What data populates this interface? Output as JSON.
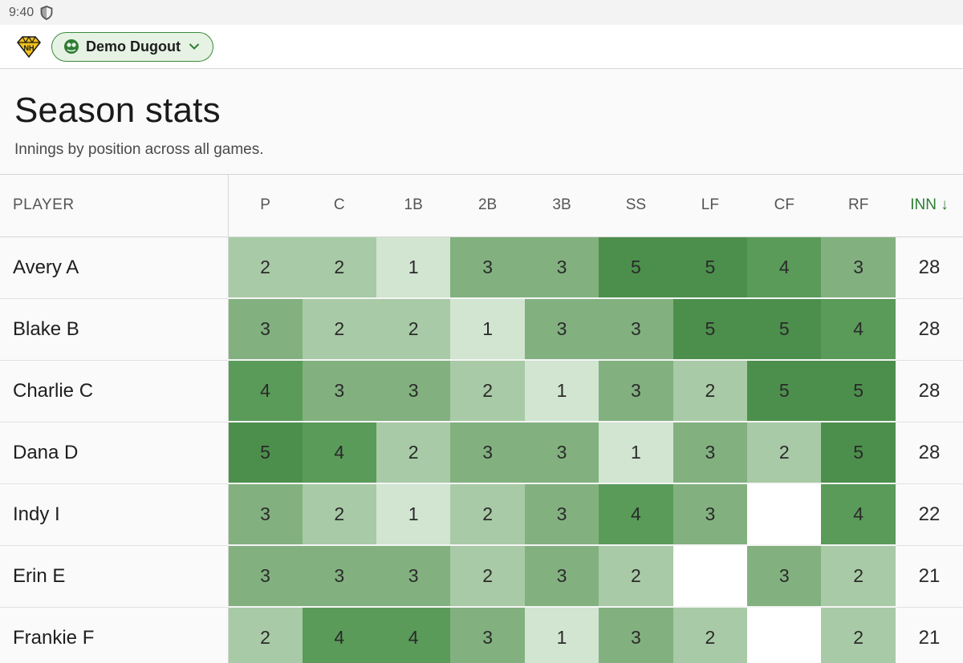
{
  "status": {
    "time": "9:40",
    "shield_icon": "shield-icon"
  },
  "appbar": {
    "logo_icon": "team-logo-icon",
    "team_name": "Demo Dugout",
    "team_icon": "baseball-icon",
    "dropdown_icon": "chevron-down-icon"
  },
  "page": {
    "title": "Season stats",
    "subtitle": "Innings by position across all games."
  },
  "table": {
    "player_header": "PLAYER",
    "positions": [
      "P",
      "C",
      "1B",
      "2B",
      "3B",
      "SS",
      "LF",
      "CF",
      "RF"
    ],
    "total_header": "INN ↓",
    "rows": [
      {
        "name": "Avery A",
        "values": [
          2,
          2,
          1,
          3,
          3,
          5,
          5,
          4,
          3
        ],
        "total": 28
      },
      {
        "name": "Blake B",
        "values": [
          3,
          2,
          2,
          1,
          3,
          3,
          5,
          5,
          4
        ],
        "total": 28
      },
      {
        "name": "Charlie C",
        "values": [
          4,
          3,
          3,
          2,
          1,
          3,
          2,
          5,
          5
        ],
        "total": 28
      },
      {
        "name": "Dana D",
        "values": [
          5,
          4,
          2,
          3,
          3,
          1,
          3,
          2,
          5
        ],
        "total": 28
      },
      {
        "name": "Indy I",
        "values": [
          3,
          2,
          1,
          2,
          3,
          4,
          3,
          null,
          4
        ],
        "total": 22
      },
      {
        "name": "Erin E",
        "values": [
          3,
          3,
          3,
          2,
          3,
          2,
          null,
          3,
          2
        ],
        "total": 21
      },
      {
        "name": "Frankie F",
        "values": [
          2,
          4,
          4,
          3,
          1,
          3,
          2,
          null,
          2
        ],
        "total": 21
      }
    ]
  },
  "colors": {
    "accent": "#2e7d32",
    "heat": {
      "1": "#d1e5d1",
      "2": "#a8caa6",
      "3": "#82b17f",
      "4": "#5a9b59",
      "5": "#4c8f4c",
      "empty": "#ffffff"
    }
  }
}
